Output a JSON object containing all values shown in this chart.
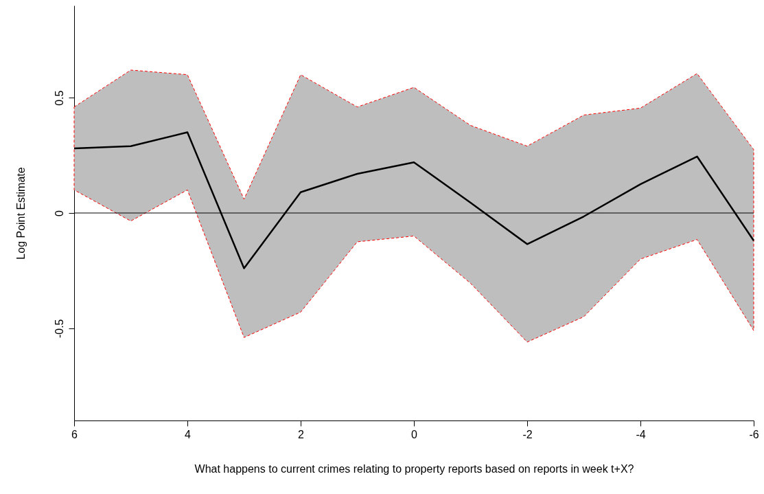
{
  "chart_data": {
    "type": "line",
    "xlabel": "What happens to current crimes relating to property reports based on reports in week t+X?",
    "ylabel": "Log Point Estimate",
    "x": [
      6,
      5,
      4,
      3,
      2,
      1,
      0,
      -1,
      -2,
      -3,
      -4,
      -5,
      -6
    ],
    "series": [
      {
        "color": "#000000",
        "values": [
          0.28,
          0.29,
          0.35,
          -0.24,
          0.09,
          0.17,
          0.22,
          0.045,
          -0.135,
          -0.015,
          0.125,
          0.245,
          -0.12
        ],
        "lower": [
          0.1,
          -0.035,
          0.1,
          -0.54,
          -0.43,
          -0.125,
          -0.1,
          -0.305,
          -0.56,
          -0.45,
          -0.2,
          -0.115,
          -0.51
        ],
        "upper": [
          0.46,
          0.62,
          0.6,
          0.06,
          0.6,
          0.46,
          0.545,
          0.38,
          0.29,
          0.425,
          0.455,
          0.605,
          0.275
        ]
      }
    ],
    "xlim": [
      6,
      -6
    ],
    "ylim": [
      -0.9,
      0.9
    ],
    "xticks": [
      6,
      4,
      2,
      0,
      -2,
      -4,
      -6
    ],
    "yticks": [
      -0.5,
      0,
      0.5
    ],
    "ref_lines": [
      {
        "axis": "y",
        "value": 0,
        "color": "#000000"
      }
    ],
    "grid": false,
    "marker": "none",
    "line_style": "solid"
  }
}
